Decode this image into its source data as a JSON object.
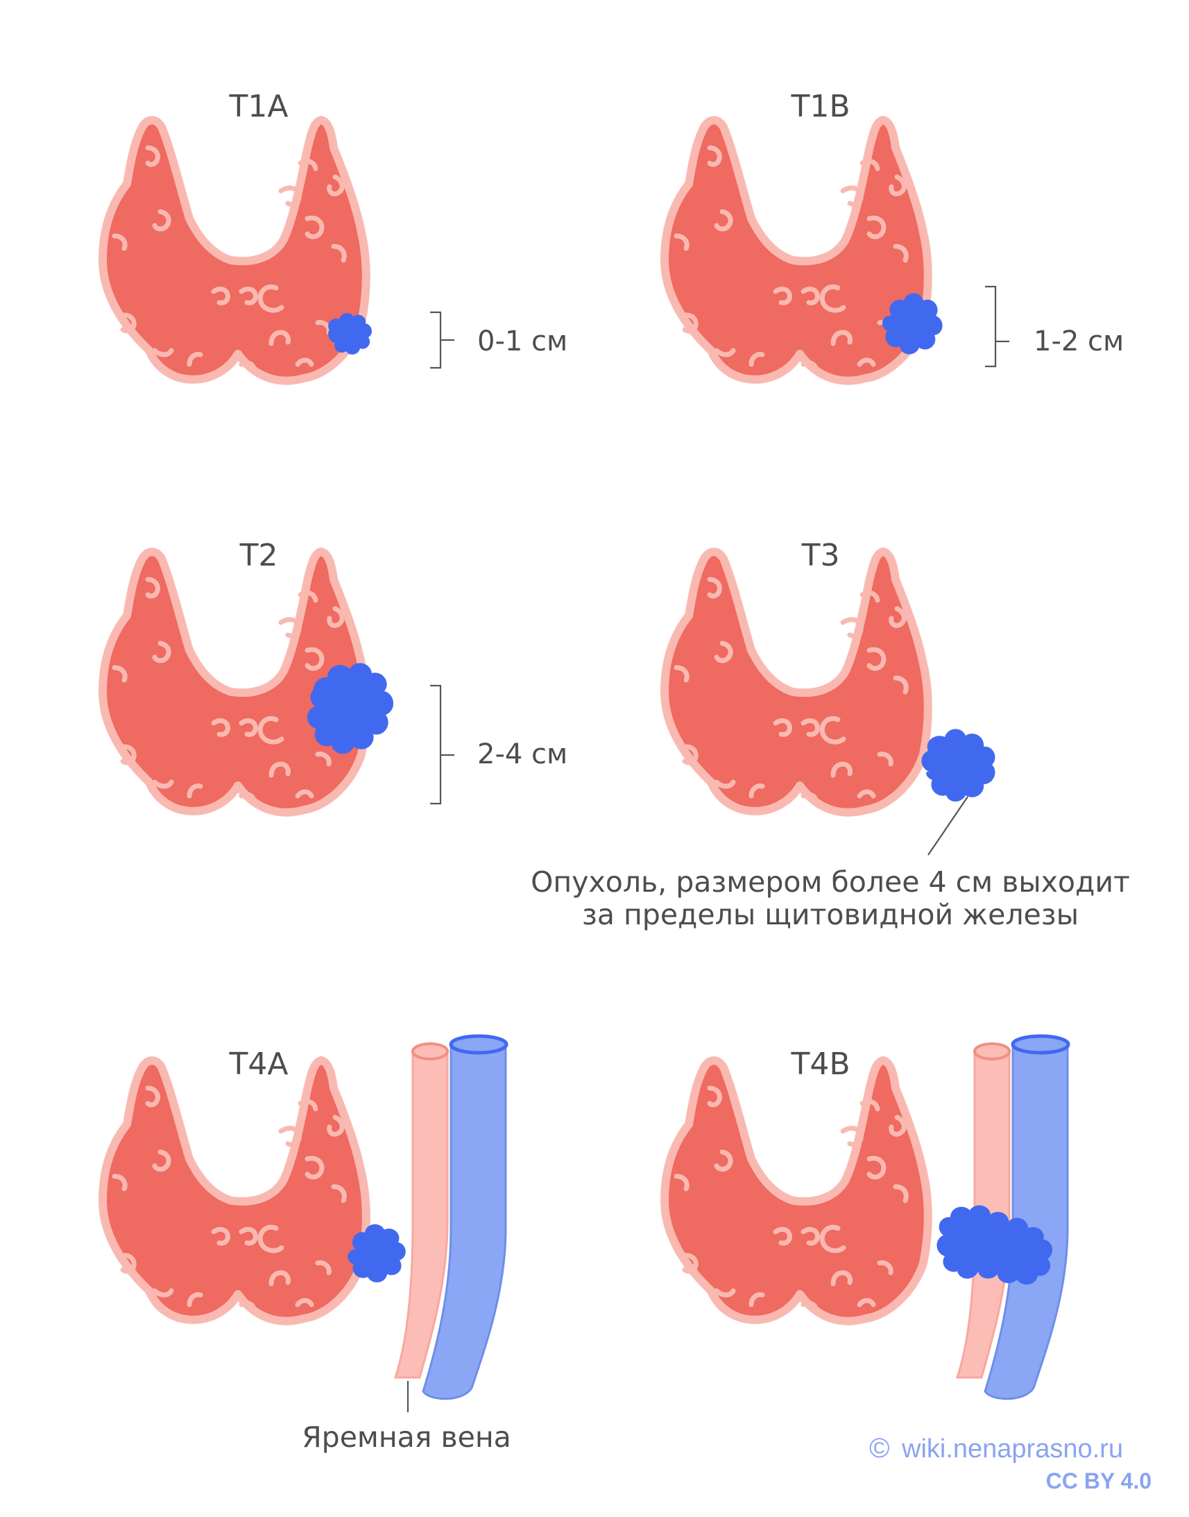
{
  "panels": [
    {
      "id": "t1a",
      "title": "T1A",
      "dimension": "0-1 см"
    },
    {
      "id": "t1b",
      "title": "T1B",
      "dimension": "1-2 см"
    },
    {
      "id": "t2",
      "title": "T2",
      "dimension": "2-4 см"
    },
    {
      "id": "t3",
      "title": "Т3",
      "note_lines": [
        "Опухоль, размером более 4 см выходит",
        "за пределы щитовидной железы"
      ]
    },
    {
      "id": "t4a",
      "title": "T4A"
    },
    {
      "id": "t4b",
      "title": "T4B"
    }
  ],
  "vein_label": "Яремная вена",
  "credit": {
    "site": "wiki.nenaprasno.ru",
    "copyright_symbol": "©",
    "license": "CC BY 4.0"
  },
  "colors": {
    "gland_fill": "#ef6a60",
    "gland_outline": "#f9b9b1",
    "tumor": "#4169ef",
    "artery": "#fbbdb6",
    "vein": "#8aa6f5",
    "text": "#4d4d4d",
    "credit": "#8aa4f0"
  }
}
